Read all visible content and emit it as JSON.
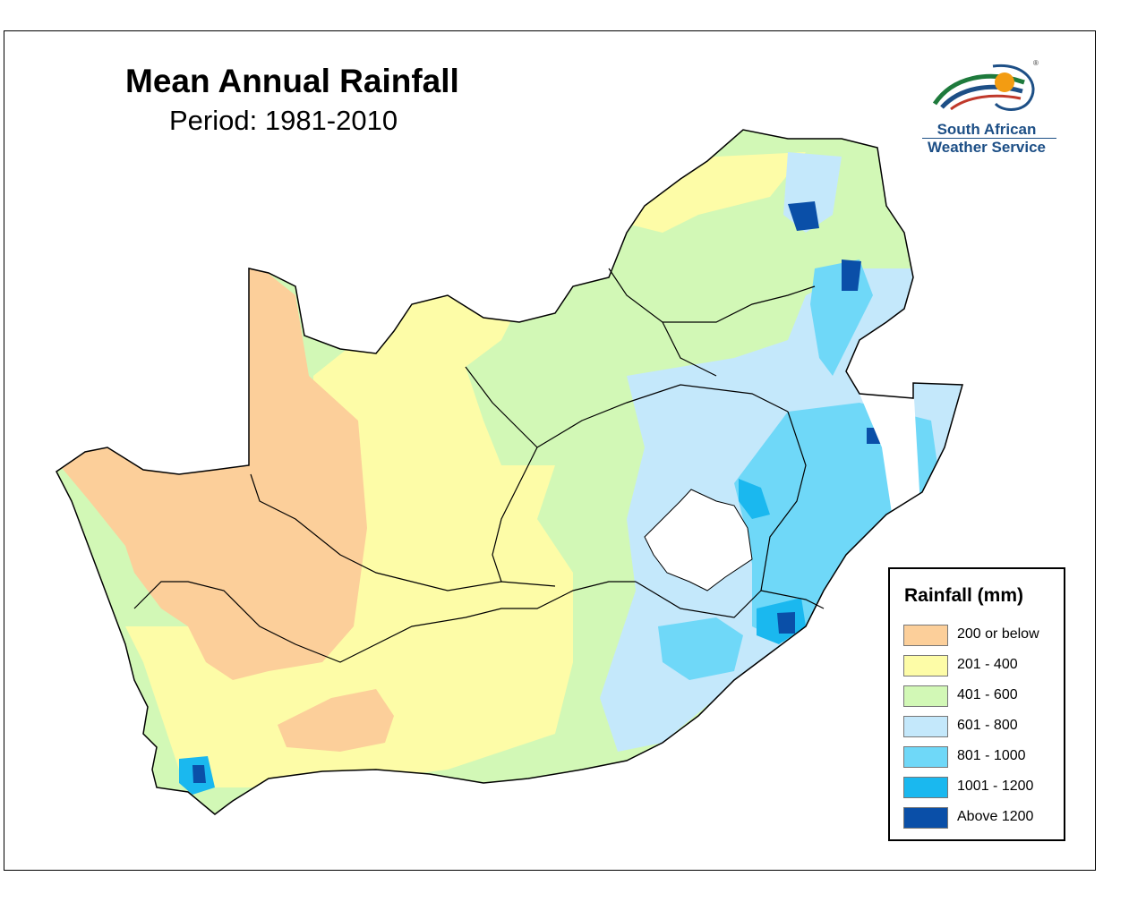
{
  "map": {
    "title": "Mean Annual Rainfall",
    "subtitle": "Period: 1981-2010",
    "colors": {
      "c200": "#fccf9a",
      "c400": "#fdfca7",
      "c600": "#d2f8b6",
      "c800": "#c4e8fb",
      "c1000": "#6fd8f8",
      "c1200": "#1ab8ef",
      "cabove": "#0a4fa8"
    }
  },
  "logo": {
    "line1": "South African",
    "line2": "Weather Service",
    "registered": "®"
  },
  "legend": {
    "title": "Rainfall (mm)",
    "items": [
      {
        "label": "200 or below",
        "color": "#fccf9a"
      },
      {
        "label": "201 - 400",
        "color": "#fdfca7"
      },
      {
        "label": "401 - 600",
        "color": "#d2f8b6"
      },
      {
        "label": "601 - 800",
        "color": "#c4e8fb"
      },
      {
        "label": "801 - 1000",
        "color": "#6fd8f8"
      },
      {
        "label": "1001 - 1200",
        "color": "#1ab8ef"
      },
      {
        "label": "Above 1200",
        "color": "#0a4fa8"
      }
    ]
  }
}
